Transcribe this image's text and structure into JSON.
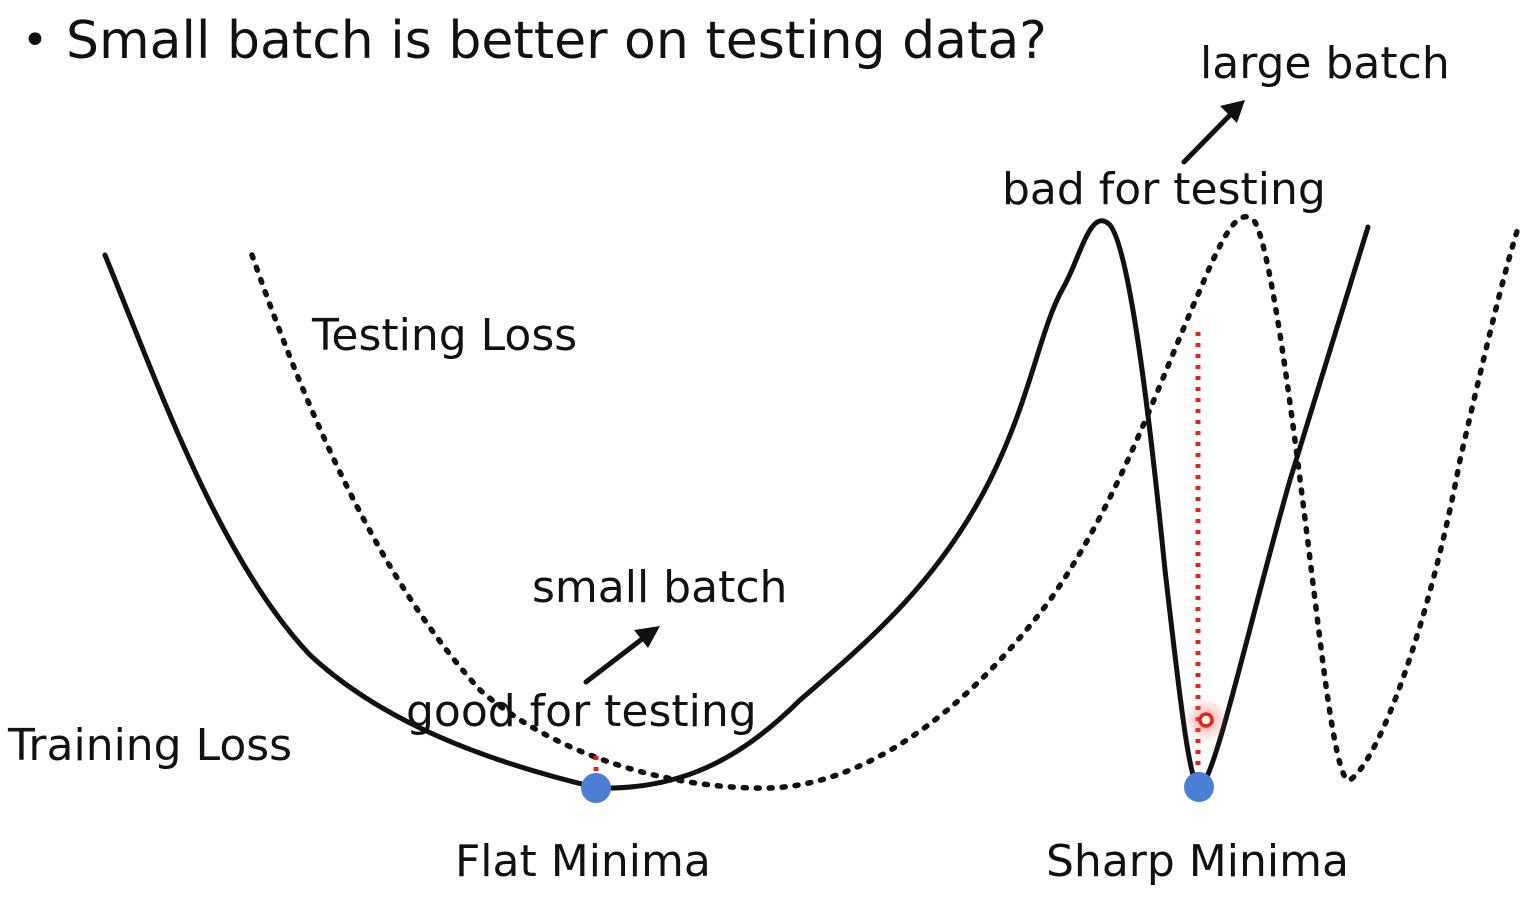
{
  "slide": {
    "bullet_glyph": "•",
    "title": "Small batch is better on testing data?",
    "curves": {
      "training_label": "Training Loss",
      "testing_label": "Testing Loss"
    },
    "flat": {
      "top_label": "small batch",
      "bottom_label": "good for testing",
      "minima_label": "Flat Minima"
    },
    "sharp": {
      "top_label": "large batch",
      "bottom_label": "bad for testing",
      "minima_label": "Sharp Minima"
    },
    "colors": {
      "curve": "#111111",
      "minima_point": "#4a7fd4",
      "gap_marker": "#e3241b"
    }
  }
}
